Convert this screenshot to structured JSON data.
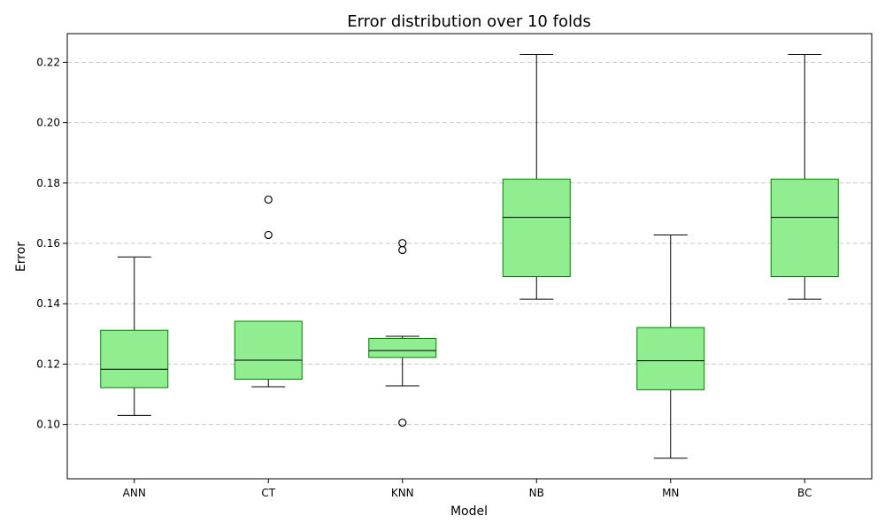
{
  "chart_data": {
    "type": "boxplot",
    "title": "Error distribution over 10 folds",
    "xlabel": "Model",
    "ylabel": "Error",
    "categories": [
      "ANN",
      "CT",
      "KNN",
      "NB",
      "MN",
      "BC"
    ],
    "ylim": [
      0.082,
      0.2295
    ],
    "yticks": [
      0.1,
      0.12,
      0.14,
      0.16,
      0.18,
      0.2,
      0.22
    ],
    "ytick_labels": [
      "0.10",
      "0.12",
      "0.14",
      "0.16",
      "0.18",
      "0.20",
      "0.22"
    ],
    "grid": "y-dashed",
    "colors": {
      "box_fill": "#90ee90",
      "box_edge": "#008000",
      "median": "#000000",
      "whisker": "#000000",
      "outlier": "#000000"
    },
    "boxes": [
      {
        "name": "ANN",
        "whislo": 0.103,
        "q1": 0.1122,
        "med": 0.1183,
        "q3": 0.1312,
        "whishi": 0.1555,
        "fliers": []
      },
      {
        "name": "CT",
        "whislo": 0.1125,
        "q1": 0.115,
        "med": 0.1213,
        "q3": 0.1342,
        "whishi": 0.1342,
        "fliers": [
          0.1745,
          0.1628
        ]
      },
      {
        "name": "KNN",
        "whislo": 0.1128,
        "q1": 0.1222,
        "med": 0.1245,
        "q3": 0.1285,
        "whishi": 0.1292,
        "fliers": [
          0.1601,
          0.1578,
          0.1006
        ]
      },
      {
        "name": "NB",
        "whislo": 0.1415,
        "q1": 0.149,
        "med": 0.1686,
        "q3": 0.1813,
        "whishi": 0.2226,
        "fliers": []
      },
      {
        "name": "MN",
        "whislo": 0.0888,
        "q1": 0.1115,
        "med": 0.1211,
        "q3": 0.1321,
        "whishi": 0.1628,
        "fliers": []
      },
      {
        "name": "BC",
        "whislo": 0.1415,
        "q1": 0.149,
        "med": 0.1686,
        "q3": 0.1813,
        "whishi": 0.2226,
        "fliers": []
      }
    ]
  }
}
